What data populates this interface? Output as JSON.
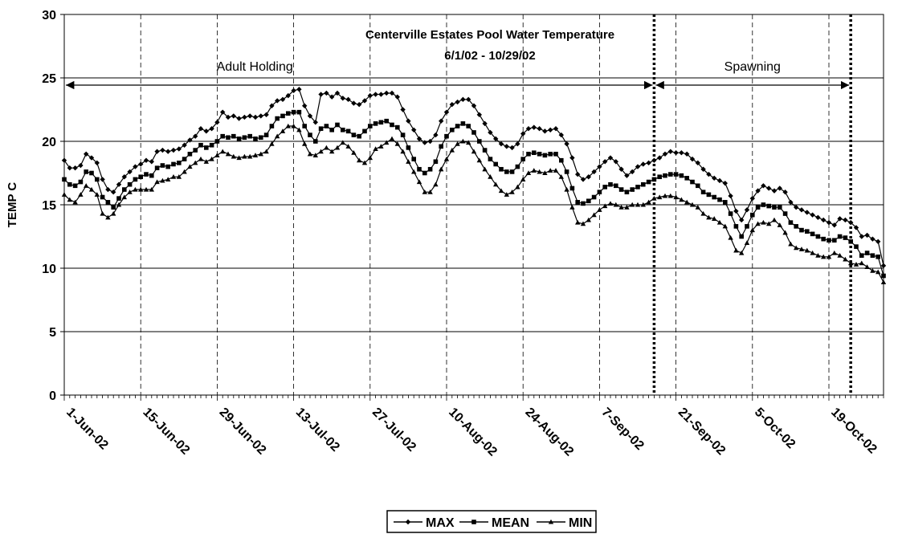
{
  "chart_data": {
    "type": "line",
    "title": "Centerville Estates Pool Water Temperature",
    "subtitle": "6/1/02 - 10/29/02",
    "y_label": "TEMP C",
    "ylim": [
      0,
      30
    ],
    "yticks": [
      0,
      5,
      10,
      15,
      20,
      25,
      30
    ],
    "grid": true,
    "legend": "bottom",
    "annotations": [
      {
        "text": "Adult Holding",
        "from": 0,
        "to": 108
      },
      {
        "text": "Spawning",
        "from": 108,
        "to": 144
      }
    ],
    "categories": [
      "1-Jun-02",
      null,
      null,
      null,
      null,
      null,
      null,
      null,
      null,
      null,
      null,
      null,
      null,
      null,
      "15-Jun-02",
      null,
      null,
      null,
      null,
      null,
      null,
      null,
      null,
      null,
      null,
      null,
      null,
      null,
      "29-Jun-02",
      null,
      null,
      null,
      null,
      null,
      null,
      null,
      null,
      null,
      null,
      null,
      null,
      null,
      "13-Jul-02",
      null,
      null,
      null,
      null,
      null,
      null,
      null,
      null,
      null,
      null,
      null,
      null,
      null,
      "27-Jul-02",
      null,
      null,
      null,
      null,
      null,
      null,
      null,
      null,
      null,
      null,
      null,
      null,
      null,
      "10-Aug-02",
      null,
      null,
      null,
      null,
      null,
      null,
      null,
      null,
      null,
      null,
      null,
      null,
      null,
      "24-Aug-02",
      null,
      null,
      null,
      null,
      null,
      null,
      null,
      null,
      null,
      null,
      null,
      null,
      null,
      "7-Sep-02",
      null,
      null,
      null,
      null,
      null,
      null,
      null,
      null,
      null,
      null,
      null,
      null,
      null,
      "21-Sep-02",
      null,
      null,
      null,
      null,
      null,
      null,
      null,
      null,
      null,
      null,
      null,
      null,
      null,
      "5-Oct-02",
      null,
      null,
      null,
      null,
      null,
      null,
      null,
      null,
      null,
      null,
      null,
      null,
      null,
      "19-Oct-02",
      null,
      null,
      null,
      null,
      null,
      null,
      null,
      null,
      null,
      null
    ],
    "series": [
      {
        "name": "MAX",
        "color": "#000000",
        "marker": "diamond",
        "values": [
          18.5,
          17.9,
          17.9,
          18.1,
          19.0,
          18.7,
          18.3,
          17.0,
          16.2,
          16.0,
          16.6,
          17.2,
          17.6,
          18.0,
          18.2,
          18.5,
          18.4,
          19.2,
          19.3,
          19.2,
          19.3,
          19.4,
          19.7,
          20.1,
          20.4,
          21.0,
          20.8,
          21.0,
          21.5,
          22.3,
          21.9,
          22.0,
          21.8,
          21.9,
          22.0,
          21.9,
          22.0,
          22.1,
          22.8,
          23.2,
          23.3,
          23.6,
          24.0,
          24.1,
          22.8,
          22.0,
          21.5,
          23.7,
          23.8,
          23.5,
          23.8,
          23.4,
          23.3,
          23.0,
          22.9,
          23.2,
          23.6,
          23.7,
          23.7,
          23.8,
          23.8,
          23.5,
          22.5,
          21.6,
          20.9,
          20.2,
          19.9,
          20.0,
          20.5,
          21.6,
          22.3,
          22.9,
          23.1,
          23.3,
          23.3,
          22.8,
          22.1,
          21.4,
          20.7,
          20.2,
          19.8,
          19.6,
          19.5,
          19.8,
          20.6,
          21.0,
          21.1,
          21.0,
          20.8,
          20.9,
          21.0,
          20.5,
          19.8,
          18.7,
          17.4,
          17.0,
          17.2,
          17.6,
          18.0,
          18.4,
          18.7,
          18.4,
          17.8,
          17.3,
          17.6,
          18.0,
          18.2,
          18.3,
          18.5,
          18.7,
          19.0,
          19.2,
          19.1,
          19.1,
          19.0,
          18.6,
          18.3,
          17.8,
          17.4,
          17.1,
          16.9,
          16.7,
          15.7,
          14.5,
          13.8,
          14.6,
          15.5,
          16.1,
          16.5,
          16.3,
          16.1,
          16.3,
          16.0,
          15.2,
          14.8,
          14.6,
          14.4,
          14.2,
          14.0,
          13.8,
          13.6,
          13.4,
          13.9,
          13.8,
          13.6,
          13.2,
          12.5,
          12.6,
          12.3,
          12.1,
          10.2
        ]
      },
      {
        "name": "MEAN",
        "color": "#000000",
        "marker": "square",
        "values": [
          17.0,
          16.6,
          16.5,
          16.8,
          17.6,
          17.5,
          17.0,
          15.6,
          15.2,
          14.8,
          15.5,
          16.2,
          16.6,
          17.0,
          17.2,
          17.4,
          17.3,
          17.9,
          18.1,
          18.0,
          18.2,
          18.3,
          18.6,
          19.0,
          19.3,
          19.7,
          19.5,
          19.7,
          20.0,
          20.4,
          20.3,
          20.4,
          20.2,
          20.3,
          20.4,
          20.2,
          20.3,
          20.5,
          21.2,
          21.8,
          22.0,
          22.2,
          22.3,
          22.3,
          21.2,
          20.5,
          20.0,
          21.0,
          21.2,
          20.9,
          21.3,
          20.9,
          20.8,
          20.5,
          20.4,
          20.8,
          21.2,
          21.4,
          21.5,
          21.6,
          21.3,
          21.1,
          20.5,
          19.5,
          18.6,
          17.8,
          17.5,
          17.8,
          18.4,
          19.6,
          20.4,
          20.9,
          21.2,
          21.4,
          21.2,
          20.7,
          20.0,
          19.3,
          18.6,
          18.2,
          17.8,
          17.6,
          17.6,
          18.0,
          18.6,
          19.0,
          19.1,
          19.0,
          18.9,
          19.0,
          19.0,
          18.5,
          17.6,
          16.3,
          15.2,
          15.1,
          15.3,
          15.6,
          16.0,
          16.4,
          16.6,
          16.5,
          16.2,
          16.0,
          16.2,
          16.4,
          16.6,
          16.8,
          17.0,
          17.2,
          17.3,
          17.4,
          17.4,
          17.3,
          17.1,
          16.8,
          16.5,
          16.0,
          15.8,
          15.6,
          15.4,
          15.2,
          14.3,
          13.3,
          12.5,
          13.3,
          14.2,
          14.8,
          15.0,
          14.9,
          14.8,
          14.8,
          14.3,
          13.6,
          13.3,
          13.0,
          12.9,
          12.7,
          12.5,
          12.3,
          12.2,
          12.2,
          12.5,
          12.4,
          12.1,
          11.7,
          11.0,
          11.2,
          11.0,
          10.9,
          9.4
        ]
      },
      {
        "name": "MIN",
        "color": "#000000",
        "marker": "triangle",
        "values": [
          15.8,
          15.4,
          15.2,
          15.8,
          16.5,
          16.2,
          15.8,
          14.3,
          14.0,
          14.3,
          15.0,
          15.6,
          16.0,
          16.2,
          16.2,
          16.2,
          16.2,
          16.8,
          16.9,
          17.0,
          17.2,
          17.2,
          17.6,
          18.0,
          18.3,
          18.6,
          18.4,
          18.6,
          18.9,
          19.2,
          19.0,
          18.8,
          18.7,
          18.8,
          18.8,
          18.9,
          19.0,
          19.2,
          19.8,
          20.4,
          20.8,
          21.2,
          21.2,
          20.9,
          19.8,
          19.0,
          18.9,
          19.2,
          19.5,
          19.2,
          19.5,
          19.9,
          19.6,
          19.1,
          18.5,
          18.3,
          18.7,
          19.4,
          19.6,
          19.9,
          20.2,
          19.8,
          19.2,
          18.4,
          17.6,
          16.8,
          16.0,
          16.0,
          16.6,
          17.8,
          18.6,
          19.3,
          19.8,
          20.0,
          19.9,
          19.2,
          18.5,
          17.8,
          17.2,
          16.6,
          16.1,
          15.8,
          16.0,
          16.4,
          17.0,
          17.5,
          17.7,
          17.6,
          17.5,
          17.7,
          17.7,
          17.2,
          16.2,
          14.8,
          13.6,
          13.5,
          13.8,
          14.2,
          14.6,
          14.9,
          15.1,
          15.0,
          14.8,
          14.8,
          15.0,
          15.0,
          15.0,
          15.2,
          15.5,
          15.6,
          15.7,
          15.7,
          15.6,
          15.4,
          15.2,
          15.0,
          14.8,
          14.3,
          14.0,
          13.9,
          13.6,
          13.3,
          12.4,
          11.4,
          11.2,
          12.0,
          13.0,
          13.5,
          13.6,
          13.5,
          13.8,
          13.4,
          12.8,
          11.9,
          11.6,
          11.5,
          11.4,
          11.2,
          11.0,
          10.9,
          10.9,
          11.2,
          11.0,
          10.7,
          10.4,
          10.3,
          10.4,
          10.1,
          9.8,
          9.7,
          8.9
        ]
      }
    ]
  }
}
